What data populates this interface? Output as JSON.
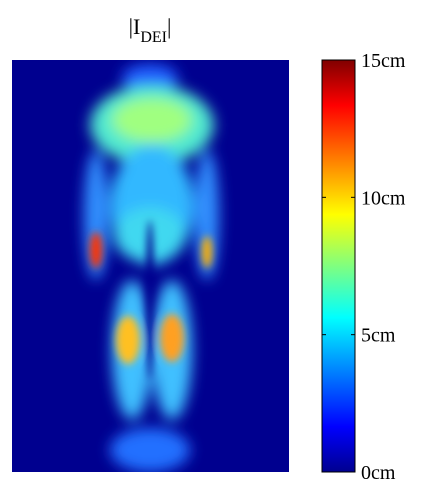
{
  "chart_data": {
    "type": "heatmap",
    "title": {
      "main": "|I",
      "subscript": "DEI",
      "end": "|"
    },
    "colormap": "jet",
    "clim": [
      0,
      15
    ],
    "cticks": [
      {
        "value": 0,
        "label": "0cm"
      },
      {
        "value": 5,
        "label": "5cm"
      },
      {
        "value": 10,
        "label": "10cm"
      },
      {
        "value": 15,
        "label": "15cm"
      }
    ]
  }
}
